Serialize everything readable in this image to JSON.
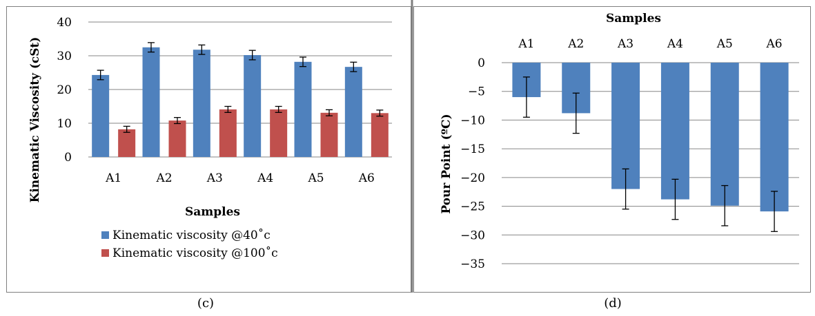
{
  "chart_data": [
    {
      "type": "bar",
      "panel_label": "(c)",
      "categories": [
        "A1",
        "A2",
        "A3",
        "A4",
        "A5",
        "A6"
      ],
      "series": [
        {
          "name": "Kinematic viscosity @40˚c",
          "color": "#4f81bd",
          "values": [
            24.3,
            32.5,
            31.8,
            30.2,
            28.2,
            26.7
          ],
          "error": [
            1.4,
            1.4,
            1.4,
            1.4,
            1.4,
            1.4
          ]
        },
        {
          "name": "Kinematic viscosity @100˚c",
          "color": "#c0504d",
          "values": [
            8.2,
            10.8,
            14.1,
            14.1,
            13.1,
            13.0
          ],
          "error": [
            0.9,
            0.9,
            0.9,
            0.9,
            0.9,
            0.9
          ]
        }
      ],
      "xlabel": "Samples",
      "ylabel": "Kinematic Viscosity (cSt)",
      "ylim": [
        0,
        40
      ],
      "yticks": [
        0,
        10,
        20,
        30,
        40
      ],
      "grid": true,
      "legend": "bottom"
    },
    {
      "type": "bar",
      "panel_label": "(d)",
      "categories": [
        "A1",
        "A2",
        "A3",
        "A4",
        "A5",
        "A6"
      ],
      "series": [
        {
          "color": "#4f81bd",
          "values": [
            -6.0,
            -8.8,
            -22.0,
            -23.8,
            -24.9,
            -25.9
          ],
          "error": [
            3.5,
            3.5,
            3.5,
            3.5,
            3.5,
            3.5
          ]
        }
      ],
      "xlabel": "Samples",
      "xaxis_position": "top",
      "ylabel": "Pour Point (ºC)",
      "ylim": [
        -35,
        0
      ],
      "yticks": [
        0,
        -5,
        -10,
        -15,
        -20,
        -25,
        -30,
        -35
      ],
      "grid": true
    }
  ]
}
